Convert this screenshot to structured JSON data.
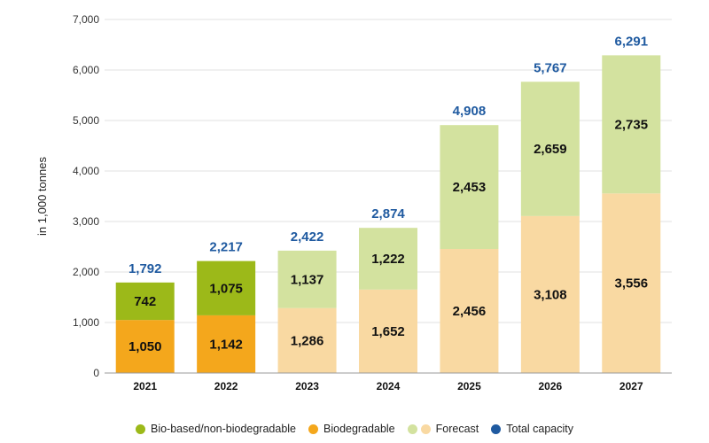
{
  "colors": {
    "bio_based": "#9cb919",
    "biodegradable": "#f4a71c",
    "forecast_bio_based": "#d3e29f",
    "forecast_biodegradable": "#f9d9a2",
    "total": "#1f5aa0",
    "axis": "#999999",
    "grid": "#e0e0e0"
  },
  "legend": [
    {
      "label": "Bio-based/non-biodegradable",
      "color": "#9cb919"
    },
    {
      "label": "Biodegradable",
      "color": "#f4a71c"
    },
    {
      "label": "Forecast",
      "colors": [
        "#d3e29f",
        "#f9d9a2"
      ]
    },
    {
      "label": "Total capacity",
      "color": "#1f5aa0"
    }
  ],
  "chart_data": {
    "type": "bar",
    "stacked": true,
    "categories": [
      "2021",
      "2022",
      "2023",
      "2024",
      "2025",
      "2026",
      "2027"
    ],
    "series": [
      {
        "name": "Biodegradable",
        "values": [
          1050,
          1142,
          1286,
          1652,
          2456,
          3108,
          3556
        ],
        "labels": [
          "1,050",
          "1,142",
          "1,286",
          "1,652",
          "2,456",
          "3,108",
          "3,556"
        ]
      },
      {
        "name": "Bio-based/non-biodegradable",
        "values": [
          742,
          1075,
          1137,
          1222,
          2453,
          2659,
          2735
        ],
        "labels": [
          "742",
          "1,075",
          "1,137",
          "1,222",
          "2,453",
          "2,659",
          "2,735"
        ]
      }
    ],
    "totals": [
      1792,
      2217,
      2422,
      2874,
      4908,
      5767,
      6291
    ],
    "total_labels": [
      "1,792",
      "2,217",
      "2,422",
      "2,874",
      "4,908",
      "5,767",
      "6,291"
    ],
    "forecast_from": "2023",
    "ylabel": "in 1,000 tonnes",
    "ylim": [
      0,
      7000
    ],
    "yticks": [
      0,
      1000,
      2000,
      3000,
      4000,
      5000,
      6000,
      7000
    ],
    "ytick_labels": [
      "0",
      "1,000",
      "2,000",
      "3,000",
      "4,000",
      "5,000",
      "6,000",
      "7,000"
    ],
    "grid": true,
    "legend_position": "bottom"
  }
}
